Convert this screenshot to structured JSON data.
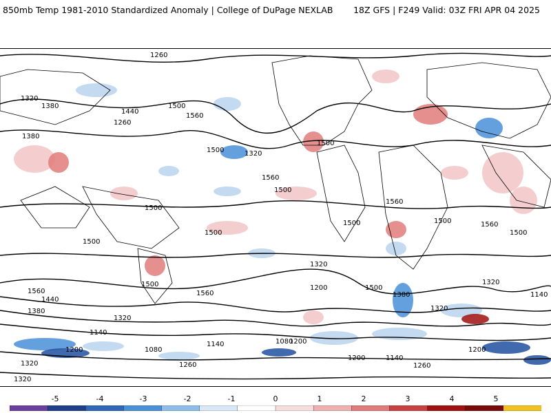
{
  "header": {
    "title_left": "850mb Temp 1981-2010 Standardized Anomaly | College of DuPage NEXLAB",
    "title_right": "18Z GFS | F249 Valid: 03Z FRI APR 04 2025"
  },
  "map": {
    "variable": "850mb temperature standardized anomaly",
    "projection": "global cylindrical",
    "contour_variable": "geopotential height (gpm)",
    "contour_labels": [
      "1260",
      "1320",
      "1380",
      "1440",
      "1500",
      "1560",
      "1200",
      "1140",
      "1080"
    ],
    "colors": {
      "strong_negative": "#1f4fa0",
      "moderate_negative": "#4a8fd8",
      "weak_negative": "#b9d4ee",
      "weak_positive": "#f2c6c6",
      "moderate_positive": "#e07b7b",
      "strong_positive": "#a01010",
      "extreme_positive": "#f0c020"
    }
  },
  "colorbar": {
    "labels": [
      "-5",
      "-4",
      "-3",
      "-2",
      "-1",
      "0",
      "1",
      "2",
      "3",
      "4",
      "5"
    ],
    "colors": [
      "#6b3fa0",
      "#1f3f8a",
      "#2f66b8",
      "#4a90d8",
      "#8fbde8",
      "#d9e8f6",
      "#ffffff",
      "#f6dcdc",
      "#eeb0b0",
      "#e07b7b",
      "#c84040",
      "#a01010",
      "#7a0a0a",
      "#f0c020"
    ]
  }
}
